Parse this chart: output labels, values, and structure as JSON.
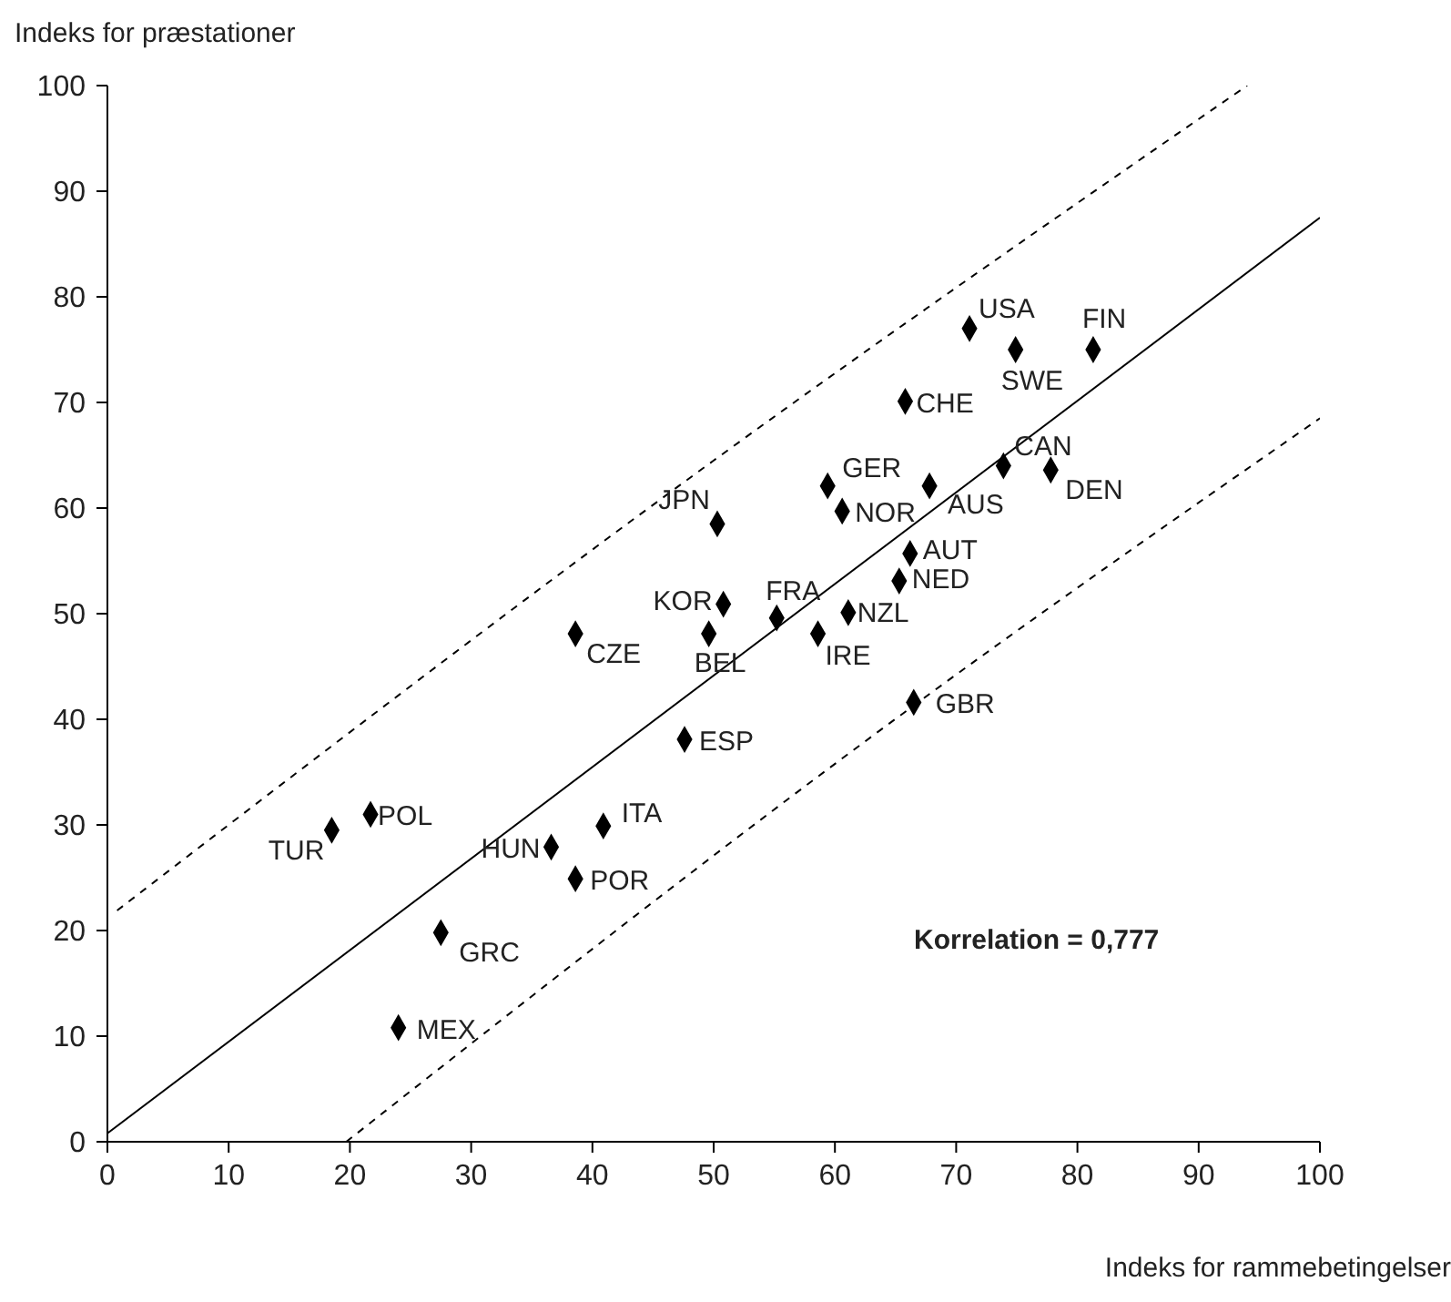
{
  "chart_data": {
    "type": "scatter",
    "xlabel": "Indeks for rammebetingelser",
    "ylabel": "Indeks for præstationer",
    "xlim": [
      0,
      100
    ],
    "ylim": [
      0,
      100
    ],
    "xticks": [
      0,
      10,
      20,
      30,
      40,
      50,
      60,
      70,
      80,
      90,
      100
    ],
    "yticks": [
      0,
      10,
      20,
      30,
      40,
      50,
      60,
      70,
      80,
      90,
      100
    ],
    "grid": false,
    "marker": "diamond",
    "series": [
      {
        "color": "#000000",
        "x": [
          71.1,
          74.9,
          81.3,
          65.8,
          73.9,
          77.8,
          59.4,
          67.8,
          60.6,
          66.2,
          65.3,
          61.1,
          55.2,
          58.6,
          49.6,
          50.8,
          50.3,
          38.6,
          47.6,
          66.5,
          18.5,
          21.7,
          36.6,
          40.9,
          38.6,
          27.5,
          24.0
        ],
        "values": [
          77.0,
          75.0,
          75.0,
          70.1,
          64.0,
          63.6,
          62.1,
          62.1,
          59.7,
          55.7,
          53.1,
          50.1,
          49.6,
          48.1,
          48.1,
          50.9,
          58.5,
          48.1,
          38.1,
          41.6,
          29.5,
          31.0,
          27.9,
          29.9,
          24.9,
          19.8,
          10.8
        ]
      },
      {
        "type": "line",
        "color": "#000000",
        "line_style": "solid",
        "marker": "none",
        "x": [
          0,
          100
        ],
        "values": [
          0.8,
          87.5
        ]
      },
      {
        "type": "line",
        "color": "#000000",
        "line_style": "dashed",
        "marker": "none",
        "x": [
          0.8,
          50,
          94
        ],
        "values": [
          21.9,
          64.5,
          100
        ]
      },
      {
        "type": "line",
        "color": "#000000",
        "line_style": "dashed",
        "marker": "none",
        "x": [
          19.7,
          66.5,
          100
        ],
        "values": [
          0,
          41.3,
          68.5
        ]
      }
    ],
    "annotations": [
      {
        "text": "USA",
        "x": 71.1,
        "y": 77.0
      },
      {
        "text": "SWE",
        "x": 74.9,
        "y": 75.0
      },
      {
        "text": "FIN",
        "x": 81.3,
        "y": 75.0
      },
      {
        "text": "CHE",
        "x": 65.8,
        "y": 70.1
      },
      {
        "text": "CAN",
        "x": 73.9,
        "y": 64.0
      },
      {
        "text": "DEN",
        "x": 77.8,
        "y": 63.6
      },
      {
        "text": "GER",
        "x": 59.4,
        "y": 62.1
      },
      {
        "text": "AUS",
        "x": 67.8,
        "y": 62.1
      },
      {
        "text": "NOR",
        "x": 60.6,
        "y": 59.7
      },
      {
        "text": "AUT",
        "x": 66.2,
        "y": 55.7
      },
      {
        "text": "NED",
        "x": 65.3,
        "y": 53.1
      },
      {
        "text": "NZL",
        "x": 61.1,
        "y": 50.1
      },
      {
        "text": "FRA",
        "x": 55.2,
        "y": 49.6
      },
      {
        "text": "IRE",
        "x": 58.6,
        "y": 48.1
      },
      {
        "text": "BEL",
        "x": 49.6,
        "y": 48.1
      },
      {
        "text": "KOR",
        "x": 50.8,
        "y": 50.9
      },
      {
        "text": "JPN",
        "x": 50.3,
        "y": 58.5
      },
      {
        "text": "CZE",
        "x": 38.6,
        "y": 48.1
      },
      {
        "text": "ESP",
        "x": 47.6,
        "y": 38.1
      },
      {
        "text": "GBR",
        "x": 66.5,
        "y": 41.6
      },
      {
        "text": "TUR",
        "x": 18.5,
        "y": 29.5
      },
      {
        "text": "POL",
        "x": 21.7,
        "y": 31.0
      },
      {
        "text": "HUN",
        "x": 36.6,
        "y": 27.9
      },
      {
        "text": "ITA",
        "x": 40.9,
        "y": 29.9
      },
      {
        "text": "POR",
        "x": 38.6,
        "y": 24.9
      },
      {
        "text": "GRC",
        "x": 27.5,
        "y": 19.8
      },
      {
        "text": "MEX",
        "x": 24.0,
        "y": 10.8
      },
      "Korrelation = 0,777"
    ]
  }
}
